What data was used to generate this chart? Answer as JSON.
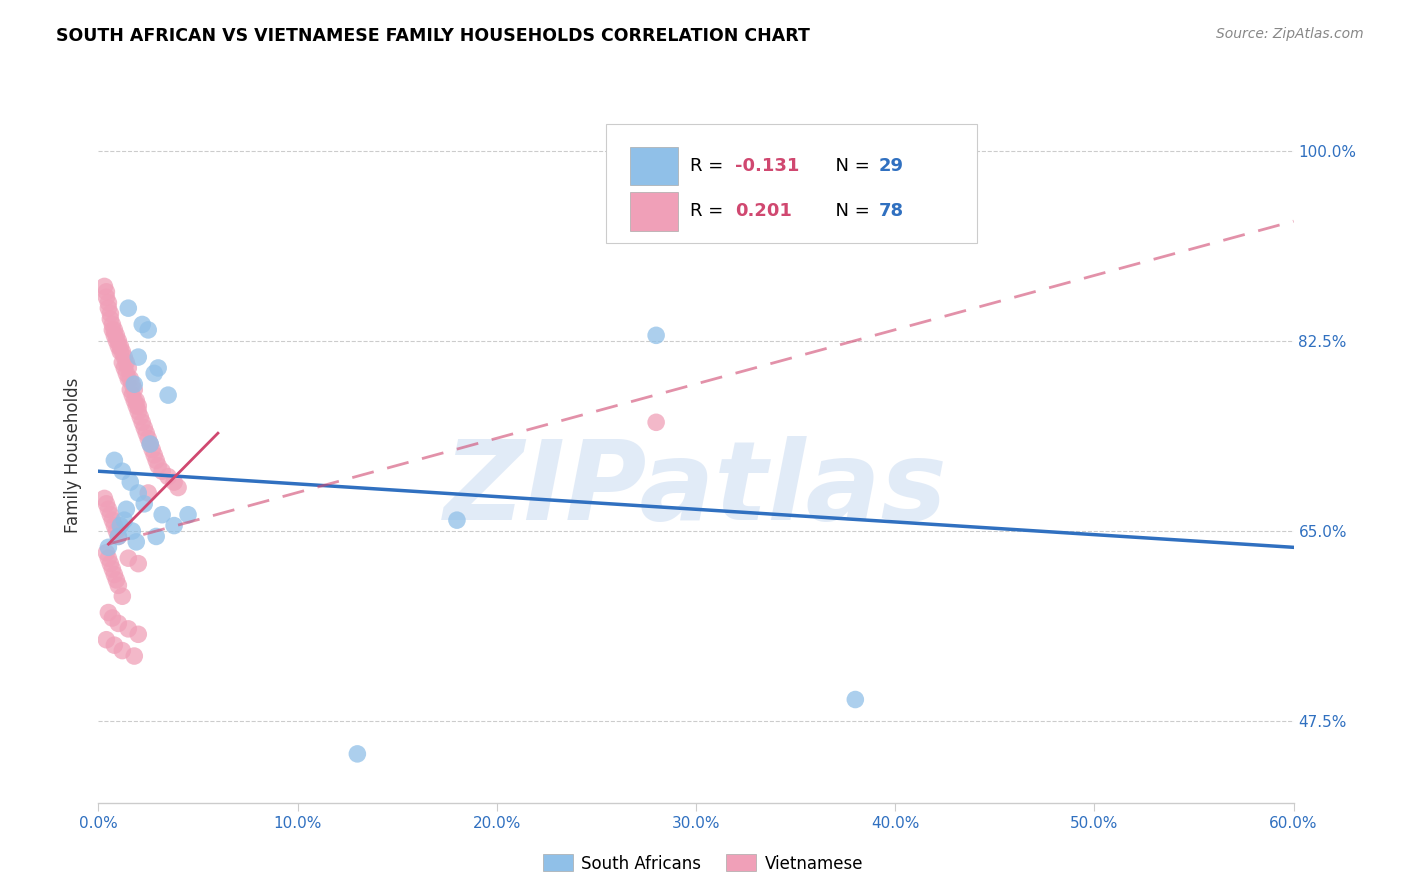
{
  "title": "SOUTH AFRICAN VS VIETNAMESE FAMILY HOUSEHOLDS CORRELATION CHART",
  "source": "Source: ZipAtlas.com",
  "ylabel": "Family Households",
  "xlim": [
    0.0,
    60.0
  ],
  "ylim": [
    40.0,
    104.0
  ],
  "xticks": [
    0.0,
    10.0,
    20.0,
    30.0,
    40.0,
    50.0,
    60.0
  ],
  "yticks": [
    47.5,
    65.0,
    82.5,
    100.0
  ],
  "blue_color": "#90C0E8",
  "pink_color": "#F0A0B8",
  "blue_line_color": "#3070C0",
  "pink_line_color": "#D04870",
  "watermark_color": "#C5D8F0",
  "watermark": "ZIPatlas",
  "blue_R": -0.131,
  "blue_N": 29,
  "pink_R": 0.201,
  "pink_N": 78,
  "blue_line_x0": 0.0,
  "blue_line_y0": 70.5,
  "blue_line_x1": 60.0,
  "blue_line_y1": 63.5,
  "pink_solid_x0": 0.5,
  "pink_solid_y0": 63.8,
  "pink_solid_x1": 6.0,
  "pink_solid_y1": 74.0,
  "pink_dash_x0": 0.5,
  "pink_dash_y0": 63.8,
  "pink_dash_x1": 60.0,
  "pink_dash_y1": 93.5,
  "blue_points_x": [
    1.5,
    2.2,
    2.0,
    3.0,
    2.5,
    2.8,
    1.8,
    3.5,
    1.2,
    1.6,
    2.3,
    1.4,
    3.2,
    1.3,
    1.1,
    2.6,
    1.7,
    2.9,
    3.8,
    4.5,
    1.0,
    2.0,
    1.9,
    0.8,
    0.5,
    28.0,
    38.0,
    18.0,
    13.0
  ],
  "blue_points_y": [
    85.5,
    84.0,
    81.0,
    80.0,
    83.5,
    79.5,
    78.5,
    77.5,
    70.5,
    69.5,
    67.5,
    67.0,
    66.5,
    66.0,
    65.5,
    73.0,
    65.0,
    64.5,
    65.5,
    66.5,
    64.5,
    68.5,
    64.0,
    71.5,
    63.5,
    83.0,
    49.5,
    66.0,
    44.5
  ],
  "pink_points_x": [
    0.4,
    0.5,
    0.6,
    0.7,
    0.8,
    0.9,
    1.0,
    1.1,
    1.2,
    1.3,
    1.4,
    1.5,
    1.6,
    1.7,
    1.8,
    1.9,
    2.0,
    2.1,
    2.2,
    2.3,
    2.4,
    2.5,
    2.6,
    2.7,
    2.8,
    2.9,
    3.0,
    3.2,
    3.5,
    3.8,
    4.0,
    0.3,
    0.4,
    0.5,
    0.6,
    0.7,
    0.8,
    0.9,
    1.0,
    1.1,
    1.2,
    1.3,
    1.4,
    1.5,
    1.6,
    1.7,
    1.8,
    1.9,
    2.0,
    2.5,
    0.3,
    0.4,
    0.5,
    0.6,
    0.7,
    0.8,
    0.9,
    1.0,
    1.5,
    2.0,
    0.4,
    0.5,
    0.6,
    0.7,
    0.8,
    0.9,
    1.0,
    1.2,
    0.5,
    0.7,
    1.0,
    1.5,
    2.0,
    0.4,
    0.8,
    1.2,
    1.8,
    28.0
  ],
  "pink_points_y": [
    86.5,
    85.5,
    84.5,
    83.5,
    83.0,
    82.5,
    82.0,
    81.5,
    80.5,
    80.0,
    79.5,
    79.0,
    78.0,
    77.5,
    77.0,
    76.5,
    76.0,
    75.5,
    75.0,
    74.5,
    74.0,
    73.5,
    73.0,
    72.5,
    72.0,
    71.5,
    71.0,
    70.5,
    70.0,
    69.5,
    69.0,
    87.5,
    87.0,
    86.0,
    85.0,
    84.0,
    83.5,
    83.0,
    82.5,
    82.0,
    81.5,
    81.0,
    80.5,
    80.0,
    79.0,
    78.5,
    78.0,
    77.0,
    76.5,
    68.5,
    68.0,
    67.5,
    67.0,
    66.5,
    66.0,
    65.5,
    65.0,
    64.5,
    62.5,
    62.0,
    63.0,
    62.5,
    62.0,
    61.5,
    61.0,
    60.5,
    60.0,
    59.0,
    57.5,
    57.0,
    56.5,
    56.0,
    55.5,
    55.0,
    54.5,
    54.0,
    53.5,
    75.0
  ]
}
